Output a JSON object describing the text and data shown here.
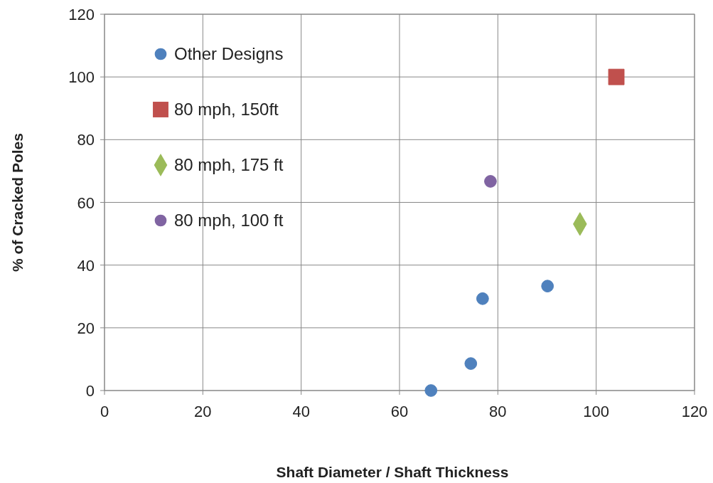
{
  "chart_data": {
    "type": "scatter",
    "xlabel": "Shaft Diameter / Shaft Thickness",
    "ylabel": "% of Cracked Poles",
    "xlim": [
      0,
      120
    ],
    "xticks": [
      0,
      20,
      40,
      60,
      80,
      100,
      120
    ],
    "ylim": [
      0,
      120
    ],
    "yticks": [
      0,
      20,
      40,
      60,
      80,
      100,
      120
    ],
    "grid": true,
    "legend": "top left",
    "series": [
      {
        "name": "Other Designs",
        "color": "#4f81bd",
        "marker": "circle",
        "x": [
          66.4,
          74.5,
          76.9,
          90.1
        ],
        "values": [
          0,
          8.6,
          29.3,
          33.3
        ]
      },
      {
        "name": "80 mph, 150ft",
        "color": "#c0504d",
        "marker": "square",
        "x": [
          104.1
        ],
        "values": [
          100
        ]
      },
      {
        "name": "80 mph, 175 ft",
        "color": "#9bbb59",
        "marker": "diamond",
        "x": [
          96.7
        ],
        "values": [
          53.1
        ]
      },
      {
        "name": "80 mph, 100 ft",
        "color": "#8064a2",
        "marker": "circle",
        "x": [
          78.5
        ],
        "values": [
          66.7
        ]
      }
    ]
  }
}
